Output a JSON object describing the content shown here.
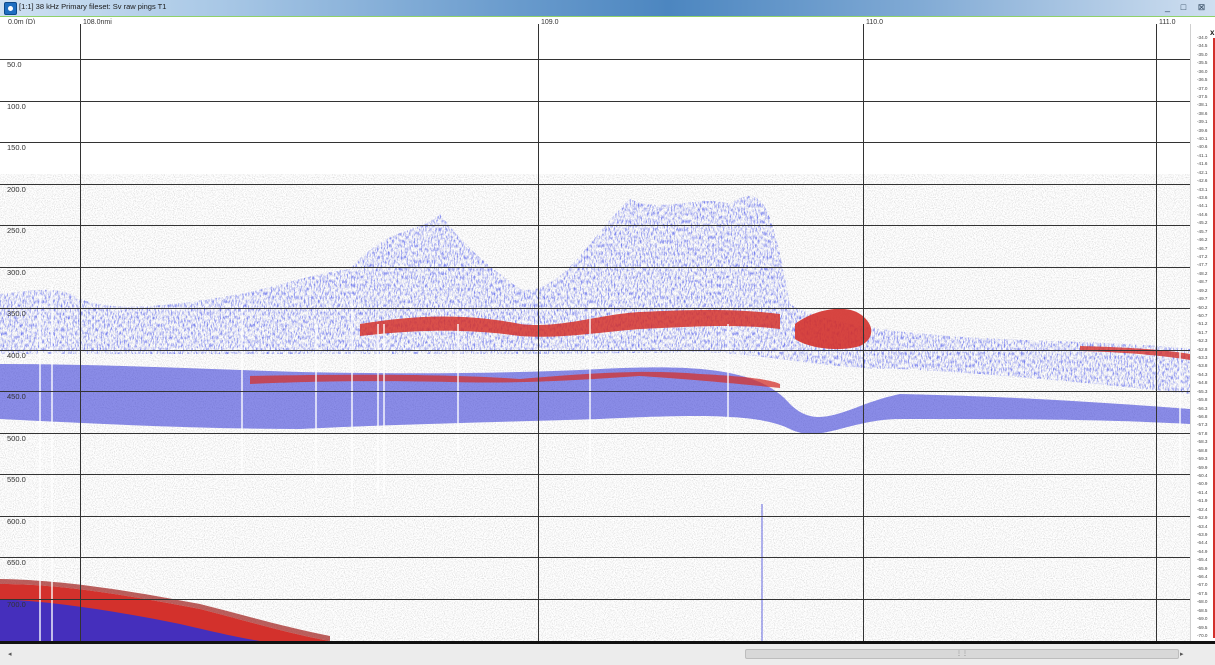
{
  "window": {
    "title": "[1:1] 38 kHz Primary fileset: Sv raw pings T1",
    "minimize_label": "_",
    "restore_label": "□",
    "close_label": "⊠"
  },
  "distance_axis": {
    "labels": [
      "108.0nmi",
      "109.0",
      "110.0",
      "111.0"
    ]
  },
  "depth_axis": {
    "labels": [
      "0.0m (D)",
      "50.0",
      "100.0",
      "150.0",
      "200.0",
      "250.0",
      "300.0",
      "350.0",
      "400.0",
      "450.0",
      "500.0",
      "550.0",
      "600.0",
      "650.0",
      "700.0"
    ]
  },
  "color_scale": {
    "close_label": "x",
    "labels": [
      "-34.0",
      "-34.5",
      "-35.0",
      "-35.5",
      "-36.0",
      "-36.5",
      "-37.0",
      "-37.5",
      "-38.1",
      "-38.6",
      "-39.1",
      "-39.6",
      "-40.1",
      "-40.6",
      "-41.1",
      "-41.6",
      "-42.1",
      "-42.6",
      "-43.1",
      "-43.6",
      "-44.1",
      "-44.6",
      "-45.2",
      "-45.7",
      "-46.2",
      "-46.7",
      "-47.2",
      "-47.7",
      "-48.2",
      "-48.7",
      "-49.2",
      "-49.7",
      "-50.2",
      "-50.7",
      "-51.2",
      "-51.7",
      "-52.3",
      "-52.8",
      "-53.3",
      "-53.8",
      "-54.3",
      "-54.8",
      "-55.3",
      "-55.8",
      "-56.3",
      "-56.8",
      "-57.3",
      "-57.8",
      "-58.3",
      "-58.8",
      "-59.3",
      "-59.9",
      "-60.4",
      "-60.9",
      "-61.4",
      "-61.9",
      "-62.4",
      "-62.9",
      "-63.4",
      "-63.9",
      "-64.4",
      "-64.9",
      "-65.4",
      "-65.9",
      "-66.4",
      "-67.0",
      "-67.5",
      "-68.0",
      "-68.5",
      "-69.0",
      "-69.5",
      "-70.0"
    ],
    "colors": {
      "strong": "#d3312c",
      "medium": "#2b2fd6",
      "weak": "#8a8a8a"
    }
  },
  "scrollbar": {
    "left_arrow": "◂",
    "right_arrow": "▸",
    "grip": "⋮⋮"
  }
}
